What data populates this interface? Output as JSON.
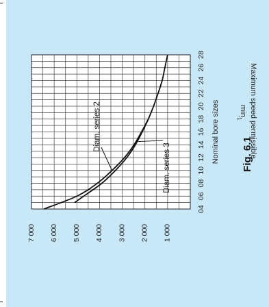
{
  "figure_label": "Fig. 6.1",
  "chart_data": {
    "type": "line",
    "orientation": "rotated-90-counterclockwise",
    "xlabel": "Nominal bore sizes",
    "ylabel": "Maximum speed permissible",
    "ylabel_unit": "min",
    "ylabel_unit_exp": "-1",
    "x_ticks": [
      "04",
      "06",
      "08",
      "10",
      "12",
      "14",
      "16",
      "18",
      "20",
      "22",
      "24",
      "26",
      "28"
    ],
    "y_ticks": [
      "1 000",
      "2 000",
      "3 000",
      "4 000",
      "5 000",
      "6 000",
      "7 000"
    ],
    "xlim": [
      4,
      28
    ],
    "ylim": [
      0,
      7000
    ],
    "grid": true,
    "series": [
      {
        "name": "Diam. series 2",
        "x": [
          4,
          6,
          8,
          10,
          12,
          14,
          16,
          18
        ],
        "y": [
          6450,
          5000,
          4100,
          3450,
          2900,
          2480,
          2150,
          1850
        ]
      },
      {
        "name": "Diam. series 3",
        "x": [
          5,
          6,
          8,
          10,
          12,
          14,
          16,
          18,
          20,
          22,
          24,
          26,
          28
        ],
        "y": [
          5100,
          4700,
          3900,
          3300,
          2800,
          2420,
          2120,
          1850,
          1620,
          1420,
          1240,
          1120,
          1000
        ]
      }
    ]
  }
}
